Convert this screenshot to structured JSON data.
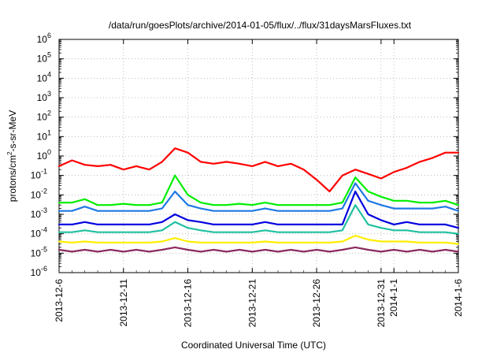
{
  "chart_data": {
    "type": "line",
    "title": "/data/run/goesPlots/archive/2014-01-05/flux/../flux/31daysMarsFluxes.txt",
    "xlabel": "Coordinated Universal Time (UTC)",
    "ylabel_base": "protons/cm",
    "ylabel_sup": "2",
    "ylabel_rest": "-s-sr-MeV",
    "y_scale": "log",
    "ylim": [
      1e-06,
      1000000.0
    ],
    "y_ticks": [
      {
        "value": 1e-06,
        "base": "10",
        "exp": "-6"
      },
      {
        "value": 1e-05,
        "base": "10",
        "exp": "-5"
      },
      {
        "value": 0.0001,
        "base": "10",
        "exp": "-4"
      },
      {
        "value": 0.001,
        "base": "10",
        "exp": "-3"
      },
      {
        "value": 0.01,
        "base": "10",
        "exp": "-2"
      },
      {
        "value": 0.1,
        "base": "10",
        "exp": "-1"
      },
      {
        "value": 1,
        "base": "10",
        "exp": "0"
      },
      {
        "value": 10,
        "base": "10",
        "exp": "1"
      },
      {
        "value": 100,
        "base": "10",
        "exp": "2"
      },
      {
        "value": 1000,
        "base": "10",
        "exp": "3"
      },
      {
        "value": 10000,
        "base": "10",
        "exp": "4"
      },
      {
        "value": 100000,
        "base": "10",
        "exp": "5"
      },
      {
        "value": 1000000,
        "base": "10",
        "exp": "6"
      }
    ],
    "xlim": [
      "2013-12-06",
      "2014-01-06"
    ],
    "x_ticks": [
      "2013-12-6",
      "2013-12-11",
      "2013-12-16",
      "2013-12-21",
      "2013-12-26",
      "2013-12-31",
      "2014-1-1",
      "2014-1-6"
    ],
    "x_tick_dates": [
      "2013-12-06",
      "2013-12-11",
      "2013-12-16",
      "2013-12-21",
      "2013-12-26",
      "2013-12-31",
      "2014-01-01",
      "2014-01-06"
    ],
    "grid": true,
    "series": [
      {
        "color": "#ff0000",
        "values": [
          [
            "2013-12-06",
            0.3
          ],
          [
            "2013-12-07",
            0.6
          ],
          [
            "2013-12-08",
            0.35
          ],
          [
            "2013-12-09",
            0.3
          ],
          [
            "2013-12-10",
            0.35
          ],
          [
            "2013-12-11",
            0.2
          ],
          [
            "2013-12-12",
            0.3
          ],
          [
            "2013-12-13",
            0.2
          ],
          [
            "2013-12-14",
            0.5
          ],
          [
            "2013-12-15",
            2.5
          ],
          [
            "2013-12-16",
            1.5
          ],
          [
            "2013-12-17",
            0.5
          ],
          [
            "2013-12-18",
            0.4
          ],
          [
            "2013-12-19",
            0.5
          ],
          [
            "2013-12-20",
            0.4
          ],
          [
            "2013-12-21",
            0.3
          ],
          [
            "2013-12-22",
            0.5
          ],
          [
            "2013-12-23",
            0.3
          ],
          [
            "2013-12-24",
            0.4
          ],
          [
            "2013-12-25",
            0.2
          ],
          [
            "2013-12-26",
            0.06
          ],
          [
            "2013-12-27",
            0.015
          ],
          [
            "2013-12-28",
            0.1
          ],
          [
            "2013-12-29",
            0.2
          ],
          [
            "2013-12-30",
            0.12
          ],
          [
            "2013-12-31",
            0.07
          ],
          [
            "2014-01-01",
            0.15
          ],
          [
            "2014-01-02",
            0.25
          ],
          [
            "2014-01-03",
            0.5
          ],
          [
            "2014-01-04",
            0.8
          ],
          [
            "2014-01-05",
            1.5
          ],
          [
            "2014-01-06",
            1.5
          ]
        ]
      },
      {
        "color": "#00ee00",
        "values": [
          [
            "2013-12-06",
            0.004
          ],
          [
            "2013-12-07",
            0.004
          ],
          [
            "2013-12-08",
            0.006
          ],
          [
            "2013-12-09",
            0.003
          ],
          [
            "2013-12-10",
            0.003
          ],
          [
            "2013-12-11",
            0.0035
          ],
          [
            "2013-12-12",
            0.003
          ],
          [
            "2013-12-13",
            0.003
          ],
          [
            "2013-12-14",
            0.004
          ],
          [
            "2013-12-15",
            0.1
          ],
          [
            "2013-12-16",
            0.01
          ],
          [
            "2013-12-17",
            0.004
          ],
          [
            "2013-12-18",
            0.003
          ],
          [
            "2013-12-19",
            0.003
          ],
          [
            "2013-12-20",
            0.0035
          ],
          [
            "2013-12-21",
            0.003
          ],
          [
            "2013-12-22",
            0.004
          ],
          [
            "2013-12-23",
            0.003
          ],
          [
            "2013-12-24",
            0.003
          ],
          [
            "2013-12-25",
            0.003
          ],
          [
            "2013-12-26",
            0.003
          ],
          [
            "2013-12-27",
            0.003
          ],
          [
            "2013-12-28",
            0.004
          ],
          [
            "2013-12-29",
            0.08
          ],
          [
            "2013-12-30",
            0.015
          ],
          [
            "2013-12-31",
            0.008
          ],
          [
            "2014-01-01",
            0.005
          ],
          [
            "2014-01-02",
            0.005
          ],
          [
            "2014-01-03",
            0.004
          ],
          [
            "2014-01-04",
            0.004
          ],
          [
            "2014-01-05",
            0.005
          ],
          [
            "2014-01-06",
            0.003
          ]
        ]
      },
      {
        "color": "#1e78e6",
        "values": [
          [
            "2013-12-06",
            0.0015
          ],
          [
            "2013-12-07",
            0.0015
          ],
          [
            "2013-12-08",
            0.0025
          ],
          [
            "2013-12-09",
            0.0015
          ],
          [
            "2013-12-10",
            0.0015
          ],
          [
            "2013-12-11",
            0.0015
          ],
          [
            "2013-12-12",
            0.0015
          ],
          [
            "2013-12-13",
            0.0015
          ],
          [
            "2013-12-14",
            0.002
          ],
          [
            "2013-12-15",
            0.015
          ],
          [
            "2013-12-16",
            0.003
          ],
          [
            "2013-12-17",
            0.002
          ],
          [
            "2013-12-18",
            0.0015
          ],
          [
            "2013-12-19",
            0.0015
          ],
          [
            "2013-12-20",
            0.0015
          ],
          [
            "2013-12-21",
            0.0015
          ],
          [
            "2013-12-22",
            0.002
          ],
          [
            "2013-12-23",
            0.0015
          ],
          [
            "2013-12-24",
            0.0015
          ],
          [
            "2013-12-25",
            0.0015
          ],
          [
            "2013-12-26",
            0.0015
          ],
          [
            "2013-12-27",
            0.0015
          ],
          [
            "2013-12-28",
            0.002
          ],
          [
            "2013-12-29",
            0.04
          ],
          [
            "2013-12-30",
            0.005
          ],
          [
            "2013-12-31",
            0.003
          ],
          [
            "2014-01-01",
            0.002
          ],
          [
            "2014-01-02",
            0.002
          ],
          [
            "2014-01-03",
            0.002
          ],
          [
            "2014-01-04",
            0.002
          ],
          [
            "2014-01-05",
            0.0025
          ],
          [
            "2014-01-06",
            0.0015
          ]
        ]
      },
      {
        "color": "#0000e0",
        "values": [
          [
            "2013-12-06",
            0.0003
          ],
          [
            "2013-12-07",
            0.0003
          ],
          [
            "2013-12-08",
            0.0004
          ],
          [
            "2013-12-09",
            0.0003
          ],
          [
            "2013-12-10",
            0.0003
          ],
          [
            "2013-12-11",
            0.0003
          ],
          [
            "2013-12-12",
            0.0003
          ],
          [
            "2013-12-13",
            0.0003
          ],
          [
            "2013-12-14",
            0.0004
          ],
          [
            "2013-12-15",
            0.001
          ],
          [
            "2013-12-16",
            0.0005
          ],
          [
            "2013-12-17",
            0.0004
          ],
          [
            "2013-12-18",
            0.0003
          ],
          [
            "2013-12-19",
            0.0003
          ],
          [
            "2013-12-20",
            0.0003
          ],
          [
            "2013-12-21",
            0.0003
          ],
          [
            "2013-12-22",
            0.0004
          ],
          [
            "2013-12-23",
            0.0003
          ],
          [
            "2013-12-24",
            0.0003
          ],
          [
            "2013-12-25",
            0.0003
          ],
          [
            "2013-12-26",
            0.0003
          ],
          [
            "2013-12-27",
            0.0003
          ],
          [
            "2013-12-28",
            0.0003
          ],
          [
            "2013-12-29",
            0.015
          ],
          [
            "2013-12-30",
            0.001
          ],
          [
            "2013-12-31",
            0.0005
          ],
          [
            "2014-01-01",
            0.0003
          ],
          [
            "2014-01-02",
            0.0004
          ],
          [
            "2014-01-03",
            0.0003
          ],
          [
            "2014-01-04",
            0.0003
          ],
          [
            "2014-01-05",
            0.0003
          ],
          [
            "2014-01-06",
            0.0002
          ]
        ]
      },
      {
        "color": "#20c0a0",
        "values": [
          [
            "2013-12-06",
            0.00012
          ],
          [
            "2013-12-07",
            0.00012
          ],
          [
            "2013-12-08",
            0.00015
          ],
          [
            "2013-12-09",
            0.00012
          ],
          [
            "2013-12-10",
            0.00012
          ],
          [
            "2013-12-11",
            0.00012
          ],
          [
            "2013-12-12",
            0.00012
          ],
          [
            "2013-12-13",
            0.00012
          ],
          [
            "2013-12-14",
            0.00015
          ],
          [
            "2013-12-15",
            0.0004
          ],
          [
            "2013-12-16",
            0.0002
          ],
          [
            "2013-12-17",
            0.00015
          ],
          [
            "2013-12-18",
            0.00012
          ],
          [
            "2013-12-19",
            0.00012
          ],
          [
            "2013-12-20",
            0.00012
          ],
          [
            "2013-12-21",
            0.00012
          ],
          [
            "2013-12-22",
            0.00015
          ],
          [
            "2013-12-23",
            0.00012
          ],
          [
            "2013-12-24",
            0.00012
          ],
          [
            "2013-12-25",
            0.00012
          ],
          [
            "2013-12-26",
            0.00012
          ],
          [
            "2013-12-27",
            0.00012
          ],
          [
            "2013-12-28",
            0.00015
          ],
          [
            "2013-12-29",
            0.003
          ],
          [
            "2013-12-30",
            0.0003
          ],
          [
            "2013-12-31",
            0.0002
          ],
          [
            "2014-01-01",
            0.00015
          ],
          [
            "2014-01-02",
            0.00015
          ],
          [
            "2014-01-03",
            0.00012
          ],
          [
            "2014-01-04",
            0.00012
          ],
          [
            "2014-01-05",
            0.00012
          ],
          [
            "2014-01-06",
            0.0001
          ]
        ]
      },
      {
        "color": "#ffee00",
        "values": [
          [
            "2013-12-06",
            4e-05
          ],
          [
            "2013-12-07",
            3.5e-05
          ],
          [
            "2013-12-08",
            4e-05
          ],
          [
            "2013-12-09",
            3.5e-05
          ],
          [
            "2013-12-10",
            3.5e-05
          ],
          [
            "2013-12-11",
            3.5e-05
          ],
          [
            "2013-12-12",
            3.5e-05
          ],
          [
            "2013-12-13",
            3.5e-05
          ],
          [
            "2013-12-14",
            4e-05
          ],
          [
            "2013-12-15",
            6e-05
          ],
          [
            "2013-12-16",
            4e-05
          ],
          [
            "2013-12-17",
            3.5e-05
          ],
          [
            "2013-12-18",
            3.5e-05
          ],
          [
            "2013-12-19",
            3.5e-05
          ],
          [
            "2013-12-20",
            3.5e-05
          ],
          [
            "2013-12-21",
            3.5e-05
          ],
          [
            "2013-12-22",
            4e-05
          ],
          [
            "2013-12-23",
            3.5e-05
          ],
          [
            "2013-12-24",
            3.5e-05
          ],
          [
            "2013-12-25",
            3.5e-05
          ],
          [
            "2013-12-26",
            3.5e-05
          ],
          [
            "2013-12-27",
            3.5e-05
          ],
          [
            "2013-12-28",
            4e-05
          ],
          [
            "2013-12-29",
            8e-05
          ],
          [
            "2013-12-30",
            5e-05
          ],
          [
            "2013-12-31",
            4e-05
          ],
          [
            "2014-01-01",
            4e-05
          ],
          [
            "2014-01-02",
            4e-05
          ],
          [
            "2014-01-03",
            3.5e-05
          ],
          [
            "2014-01-04",
            3.5e-05
          ],
          [
            "2014-01-05",
            3.5e-05
          ],
          [
            "2014-01-06",
            3e-05
          ]
        ]
      },
      {
        "color": "#8b2a60",
        "values": [
          [
            "2013-12-06",
            1.5e-05
          ],
          [
            "2013-12-07",
            1.2e-05
          ],
          [
            "2013-12-08",
            1.5e-05
          ],
          [
            "2013-12-09",
            1.2e-05
          ],
          [
            "2013-12-10",
            1.5e-05
          ],
          [
            "2013-12-11",
            1.2e-05
          ],
          [
            "2013-12-12",
            1.5e-05
          ],
          [
            "2013-12-13",
            1.2e-05
          ],
          [
            "2013-12-14",
            1.5e-05
          ],
          [
            "2013-12-15",
            2e-05
          ],
          [
            "2013-12-16",
            1.5e-05
          ],
          [
            "2013-12-17",
            1.2e-05
          ],
          [
            "2013-12-18",
            1.5e-05
          ],
          [
            "2013-12-19",
            1.2e-05
          ],
          [
            "2013-12-20",
            1.5e-05
          ],
          [
            "2013-12-21",
            1.2e-05
          ],
          [
            "2013-12-22",
            1.5e-05
          ],
          [
            "2013-12-23",
            1.2e-05
          ],
          [
            "2013-12-24",
            1.5e-05
          ],
          [
            "2013-12-25",
            1.2e-05
          ],
          [
            "2013-12-26",
            1.5e-05
          ],
          [
            "2013-12-27",
            1.2e-05
          ],
          [
            "2013-12-28",
            1.5e-05
          ],
          [
            "2013-12-29",
            2e-05
          ],
          [
            "2013-12-30",
            1.5e-05
          ],
          [
            "2013-12-31",
            1.2e-05
          ],
          [
            "2014-01-01",
            1.5e-05
          ],
          [
            "2014-01-02",
            1.2e-05
          ],
          [
            "2014-01-03",
            1.5e-05
          ],
          [
            "2014-01-04",
            1.2e-05
          ],
          [
            "2014-01-05",
            1.5e-05
          ],
          [
            "2014-01-06",
            1.2e-05
          ]
        ]
      }
    ]
  }
}
